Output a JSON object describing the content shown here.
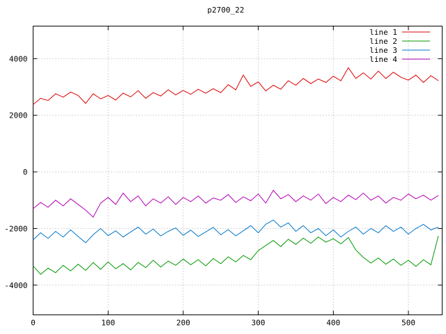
{
  "window": {
    "title": "p2700_22"
  },
  "chart_data": {
    "type": "line",
    "title": "p2700_22",
    "xlabel": "",
    "ylabel": "",
    "xlim": [
      0,
      545
    ],
    "ylim": [
      -5050,
      5150
    ],
    "xticks": [
      0,
      100,
      200,
      300,
      400,
      500
    ],
    "yticks": [
      -4000,
      -2000,
      0,
      2000,
      4000
    ],
    "grid": true,
    "legend_position": "top-right-inside",
    "x_start": 0,
    "x_step": 10,
    "series": [
      {
        "name": "line 1",
        "color": "#dd0000",
        "values": [
          2380,
          2600,
          2520,
          2760,
          2640,
          2820,
          2700,
          2420,
          2760,
          2580,
          2700,
          2540,
          2780,
          2650,
          2870,
          2600,
          2800,
          2680,
          2900,
          2720,
          2880,
          2740,
          2920,
          2780,
          2940,
          2800,
          3080,
          2900,
          3420,
          3020,
          3180,
          2860,
          3060,
          2920,
          3220,
          3060,
          3300,
          3120,
          3280,
          3160,
          3380,
          3220,
          3680,
          3300,
          3500,
          3280,
          3560,
          3300,
          3520,
          3340,
          3240,
          3420,
          3160,
          3400,
          3220
        ]
      },
      {
        "name": "line 2",
        "color": "#009a00",
        "values": [
          -3320,
          -3620,
          -3400,
          -3560,
          -3300,
          -3500,
          -3260,
          -3480,
          -3200,
          -3440,
          -3180,
          -3420,
          -3240,
          -3460,
          -3200,
          -3380,
          -3120,
          -3360,
          -3150,
          -3300,
          -3080,
          -3280,
          -3100,
          -3320,
          -3060,
          -3240,
          -3000,
          -3180,
          -2950,
          -3100,
          -2780,
          -2600,
          -2420,
          -2640,
          -2380,
          -2560,
          -2340,
          -2520,
          -2300,
          -2480,
          -2360,
          -2540,
          -2320,
          -2760,
          -3020,
          -3220,
          -3040,
          -3260,
          -3080,
          -3300,
          -3120,
          -3340,
          -3100,
          -3280,
          -2260
        ]
      },
      {
        "name": "line 3",
        "color": "#0076c8",
        "values": [
          -2400,
          -2150,
          -2350,
          -2100,
          -2300,
          -2050,
          -2280,
          -2500,
          -2220,
          -2000,
          -2250,
          -2080,
          -2300,
          -2120,
          -1950,
          -2200,
          -2020,
          -2260,
          -2100,
          -1980,
          -2240,
          -2060,
          -2280,
          -2120,
          -1960,
          -2220,
          -2040,
          -2260,
          -2080,
          -1900,
          -2150,
          -1850,
          -1700,
          -1950,
          -1800,
          -2100,
          -1900,
          -2150,
          -2000,
          -2250,
          -2050,
          -2300,
          -2100,
          -1950,
          -2200,
          -2000,
          -2150,
          -1900,
          -2100,
          -1950,
          -2200,
          -2000,
          -1850,
          -2050,
          -1950
        ]
      },
      {
        "name": "line 4",
        "color": "#b400b4",
        "values": [
          -1300,
          -1080,
          -1250,
          -1000,
          -1200,
          -950,
          -1150,
          -1350,
          -1600,
          -1100,
          -900,
          -1150,
          -750,
          -1050,
          -850,
          -1200,
          -950,
          -1100,
          -880,
          -1150,
          -900,
          -1050,
          -850,
          -1100,
          -920,
          -1000,
          -800,
          -1080,
          -880,
          -1020,
          -780,
          -1100,
          -650,
          -950,
          -800,
          -1050,
          -850,
          -1000,
          -780,
          -1120,
          -900,
          -1050,
          -820,
          -980,
          -750,
          -1000,
          -850,
          -1100,
          -900,
          -1000,
          -780,
          -950,
          -820,
          -1000,
          -830
        ]
      }
    ]
  }
}
